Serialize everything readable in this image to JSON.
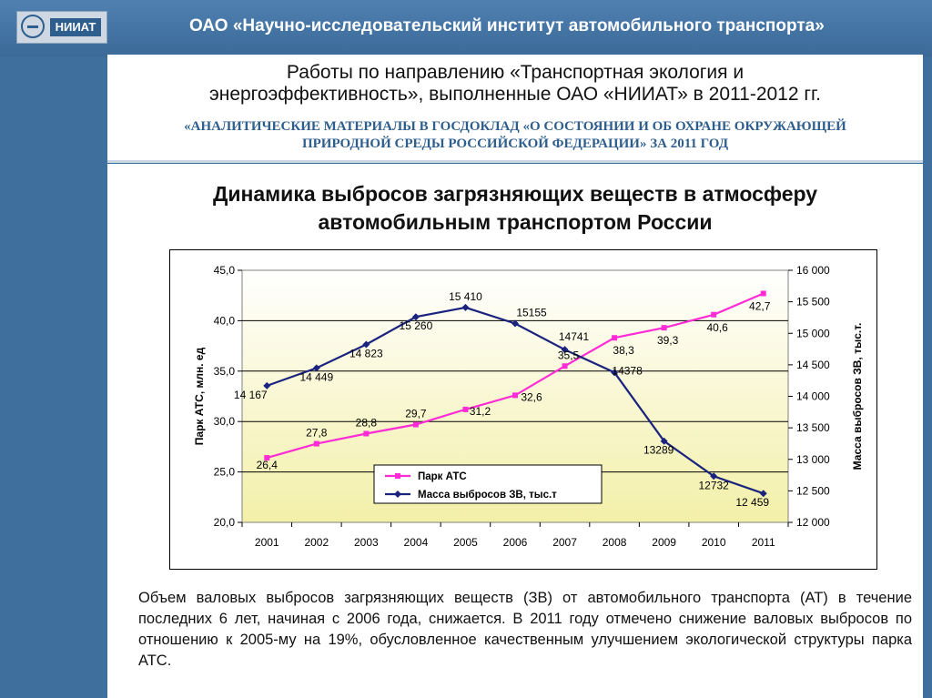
{
  "header": {
    "logo_text": "НИИАТ",
    "org_title": "ОАО «Научно-исследовательский институт автомобильного транспорта»"
  },
  "heading": {
    "line1": "Работы по направлению «Транспортная экология и",
    "line2": "энергоэффективность», выполненные ОАО «НИИАТ» в 2011-2012 гг.",
    "sub1": "«АНАЛИТИЧЕСКИЕ МАТЕРИАЛЫ В ГОСДОКЛАД «О СОСТОЯНИИ И ОБ ОХРАНЕ ОКРУЖАЮЩЕЙ",
    "sub2": "ПРИРОДНОЙ СРЕДЫ РОССИЙСКОЙ ФЕДЕРАЦИИ» ЗА 2011 ГОД"
  },
  "main": {
    "title_line1": "Динамика выбросов загрязняющих веществ в атмосферу",
    "title_line2": "автомобильным транспортом России",
    "description": "Объем валовых выбросов загрязняющих веществ (ЗВ) от автомобильного транспорта (АТ) в течение последних 6 лет, начиная с 2006 года, снижается. В 2011 году отмечено снижение валовых выбросов по отношению к 2005-му на 19%, обусловленное качественным улучшением экологической структуры парка АТС."
  },
  "chart_data": {
    "type": "line",
    "categories": [
      "2001",
      "2002",
      "2003",
      "2004",
      "2005",
      "2006",
      "2007",
      "2008",
      "2009",
      "2010",
      "2011"
    ],
    "ylabel_left": "Парк АТС, млн. ед",
    "ylabel_right": "Масса выбросов ЗВ, тыс.т.",
    "ylim_left": [
      20,
      45
    ],
    "yticks_left": [
      "20,0",
      "25,0",
      "30,0",
      "35,0",
      "40,0",
      "45,0"
    ],
    "ylim_right": [
      12000,
      16000
    ],
    "yticks_right": [
      "12 000",
      "12 500",
      "13 000",
      "13 500",
      "14 000",
      "14 500",
      "15 000",
      "15 500",
      "16 000"
    ],
    "grid": true,
    "legend_position": "bottom-center",
    "series": [
      {
        "name": "Парк АТС",
        "axis": "left",
        "color": "#ff2bd6",
        "values": [
          26.4,
          27.8,
          28.8,
          29.7,
          31.2,
          32.6,
          35.5,
          38.3,
          39.3,
          40.6,
          42.7
        ],
        "labels": [
          "26,4",
          "27,8",
          "28,8",
          "29,7",
          "31,2",
          "32,6",
          "35,5",
          "38,3",
          "39,3",
          "40,6",
          "42,7"
        ]
      },
      {
        "name": "Масса выбросов ЗВ, тыс.т",
        "axis": "right",
        "color": "#1a237e",
        "values": [
          14167,
          14449,
          14823,
          15260,
          15410,
          15155,
          14741,
          14378,
          13289,
          12732,
          12459
        ],
        "labels": [
          "14 167",
          "14 449",
          "14 823",
          "15 260",
          "15 410",
          "15155",
          "14741",
          "14378",
          "13289",
          "12732",
          "12 459"
        ]
      }
    ]
  }
}
